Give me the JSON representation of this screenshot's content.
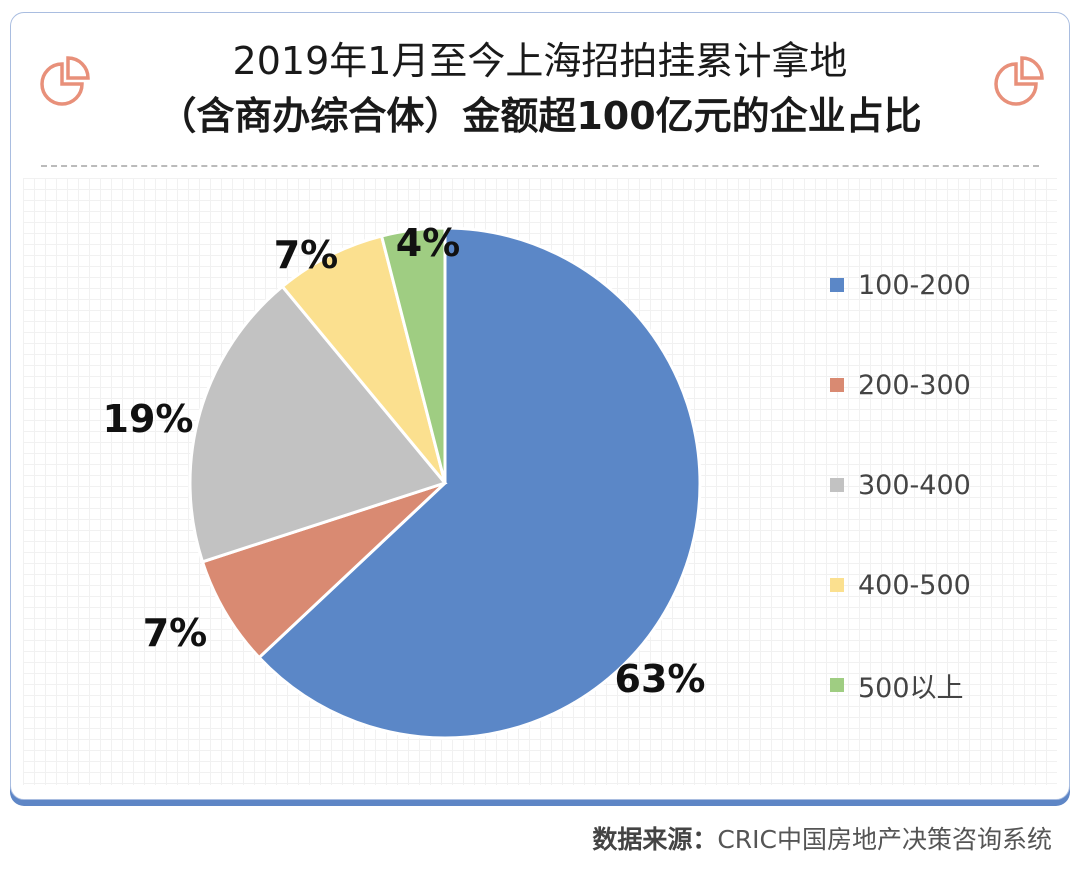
{
  "title_line1": "2019年1月至今上海招拍挂累计拿地",
  "title_line2": "（含商办综合体）金额超100亿元的企业占比",
  "source_label": "数据来源：",
  "source_text": "CRIC中国房地产决策咨询系统",
  "icons": {
    "left": "pie-chart-icon",
    "right": "pie-chart-icon",
    "color": "#e8907a"
  },
  "chart_data": {
    "type": "pie",
    "start": "12 o'clock, clockwise",
    "categories": [
      "100-200",
      "200-300",
      "300-400",
      "400-500",
      "500以上"
    ],
    "values": [
      63,
      7,
      19,
      7,
      4
    ],
    "labels": [
      "63%",
      "7%",
      "19%",
      "7%",
      "4%"
    ],
    "colors": [
      "#5b87c7",
      "#d98a72",
      "#c2c2c2",
      "#fbe08f",
      "#9fcd82"
    ],
    "legend_position": "right"
  }
}
